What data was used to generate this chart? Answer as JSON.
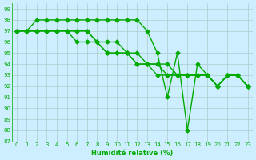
{
  "xlabel": "Humidité relative (%)",
  "bg_color": "#cceeff",
  "grid_color": "#aacccc",
  "line_color": "#00aa00",
  "marker": "D",
  "markersize": 2.5,
  "linewidth": 1.0,
  "xlim": [
    -0.5,
    23.5
  ],
  "ylim": [
    87,
    99.5
  ],
  "yticks": [
    87,
    88,
    89,
    90,
    91,
    92,
    93,
    94,
    95,
    96,
    97,
    98,
    99
  ],
  "xticks": [
    0,
    1,
    2,
    3,
    4,
    5,
    6,
    7,
    8,
    9,
    10,
    11,
    12,
    13,
    14,
    15,
    16,
    17,
    18,
    19,
    20,
    21,
    22,
    23
  ],
  "series": [
    [
      97,
      97,
      98,
      98,
      98,
      98,
      98,
      98,
      98,
      98,
      98,
      98,
      98,
      97,
      95,
      91,
      95,
      88,
      94,
      93,
      92,
      93,
      93,
      92
    ],
    [
      97,
      97,
      97,
      97,
      97,
      97,
      97,
      97,
      96,
      96,
      96,
      95,
      95,
      94,
      94,
      94,
      93,
      93,
      93,
      93,
      92,
      93,
      93,
      92
    ],
    [
      97,
      97,
      97,
      97,
      97,
      97,
      97,
      97,
      96,
      95,
      95,
      95,
      94,
      94,
      94,
      93,
      93,
      93,
      93,
      93,
      92,
      93,
      93,
      92
    ],
    [
      97,
      97,
      97,
      97,
      97,
      97,
      96,
      96,
      96,
      95,
      95,
      95,
      94,
      94,
      93,
      93,
      93,
      93,
      93,
      93,
      92,
      93,
      93,
      92
    ]
  ]
}
